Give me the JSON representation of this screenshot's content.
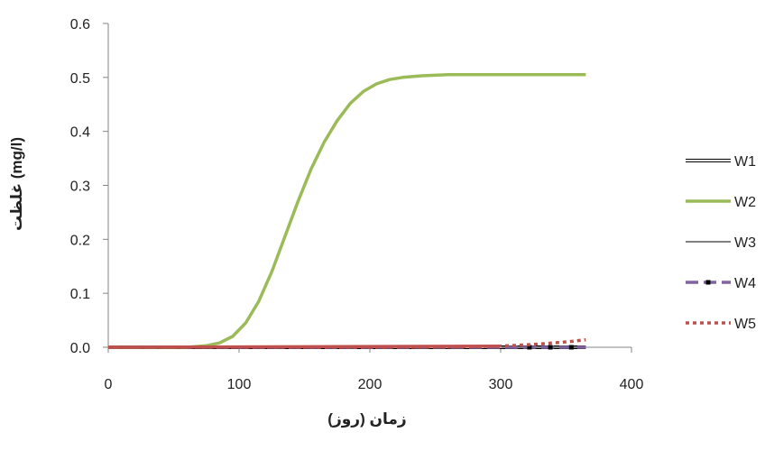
{
  "chart_data": {
    "type": "line",
    "title": "",
    "xlabel": "زمان (روز)",
    "ylabel": "غلظت (mg/l)",
    "xlim": [
      0,
      400
    ],
    "ylim": [
      0.0,
      0.6
    ],
    "xticks": [
      0,
      100,
      200,
      300,
      400
    ],
    "xtick_labels": [
      "0",
      "100",
      "200",
      "300",
      "400"
    ],
    "yticks": [
      0.0,
      0.1,
      0.2,
      0.3,
      0.4,
      0.5,
      0.6
    ],
    "ytick_labels": [
      "0.0",
      "0.1",
      "0.2",
      "0.3",
      "0.4",
      "0.5",
      "0.6"
    ],
    "grid": false,
    "legend_position": "right",
    "series": [
      {
        "name": "W1",
        "color": "#000000",
        "style": "double",
        "x": [
          0,
          100,
          200,
          300,
          365
        ],
        "y": [
          0,
          0,
          0,
          0,
          0
        ]
      },
      {
        "name": "W2",
        "color": "#9bbb59",
        "style": "solid-thick",
        "x": [
          0,
          60,
          75,
          85,
          95,
          105,
          115,
          125,
          135,
          145,
          155,
          165,
          175,
          185,
          195,
          205,
          215,
          225,
          240,
          260,
          280,
          300,
          330,
          365
        ],
        "y": [
          0,
          0.0,
          0.003,
          0.008,
          0.02,
          0.045,
          0.085,
          0.14,
          0.205,
          0.27,
          0.33,
          0.38,
          0.42,
          0.452,
          0.474,
          0.488,
          0.496,
          0.5,
          0.503,
          0.505,
          0.505,
          0.505,
          0.505,
          0.505
        ]
      },
      {
        "name": "W3",
        "color": "#000000",
        "style": "thin",
        "x": [
          0,
          100,
          200,
          300,
          365
        ],
        "y": [
          0,
          0,
          0,
          0,
          0
        ]
      },
      {
        "name": "W4",
        "color": "#8064a2",
        "style": "dash-dot-markers",
        "x": [
          0,
          100,
          200,
          300,
          320,
          340,
          355,
          365
        ],
        "y": [
          0,
          0,
          0,
          0,
          0,
          0,
          0,
          0
        ],
        "marker_x": [
          322,
          338,
          354
        ]
      },
      {
        "name": "W5",
        "color": "#c0504d",
        "style": "dotted",
        "x": [
          0,
          100,
          200,
          260,
          280,
          300,
          315,
          330,
          345,
          355,
          365
        ],
        "y": [
          0,
          0,
          0,
          0.0005,
          0.0012,
          0.002,
          0.004,
          0.006,
          0.009,
          0.011,
          0.014
        ]
      }
    ]
  }
}
